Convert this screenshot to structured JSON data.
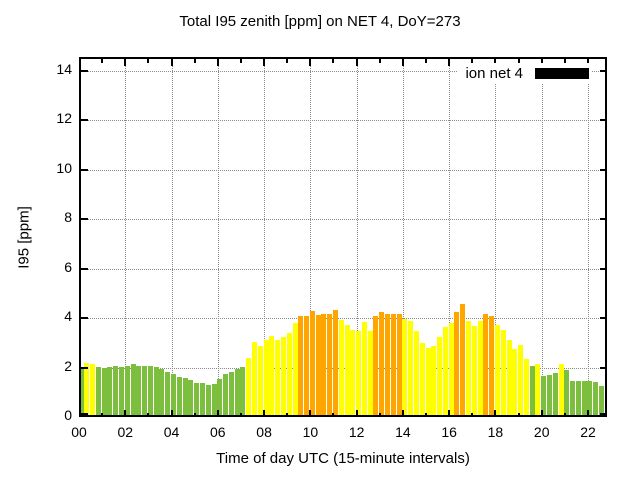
{
  "title": "Total I95 zenith [ppm] on NET 4, DoY=273",
  "legend": {
    "label": "ion net 4",
    "swatch_color": "#000000"
  },
  "colors": {
    "green": "#7cbf3f",
    "yellow": "#ffff00",
    "orange": "#ffa500",
    "grid": "#8a8a8a",
    "axis": "#000000"
  },
  "chart_data": {
    "type": "bar",
    "title": "Total I95 zenith [ppm] on NET 4, DoY=273",
    "xlabel": "Time of day UTC (15-minute intervals)",
    "ylabel": "I95 [ppm]",
    "ylim": [
      0,
      14
    ],
    "xlim_hours": [
      0,
      22.8
    ],
    "grid": true,
    "legend_position": "top-right",
    "y_tick_labels": [
      "0",
      "2",
      "4",
      "6",
      "8",
      "10",
      "12",
      "14"
    ],
    "x_tick_labels": [
      "00",
      "02",
      "04",
      "06",
      "08",
      "10",
      "12",
      "14",
      "16",
      "18",
      "20",
      "22"
    ],
    "bars": [
      {
        "t": "00:00",
        "v": 1.85,
        "c": "green"
      },
      {
        "t": "00:15",
        "v": 2.1,
        "c": "yellow"
      },
      {
        "t": "00:30",
        "v": 2.05,
        "c": "yellow"
      },
      {
        "t": "00:45",
        "v": 1.95,
        "c": "green"
      },
      {
        "t": "01:00",
        "v": 1.9,
        "c": "green"
      },
      {
        "t": "01:15",
        "v": 1.95,
        "c": "green"
      },
      {
        "t": "01:30",
        "v": 2.0,
        "c": "green"
      },
      {
        "t": "01:45",
        "v": 1.95,
        "c": "green"
      },
      {
        "t": "02:00",
        "v": 2.0,
        "c": "green"
      },
      {
        "t": "02:15",
        "v": 2.05,
        "c": "green"
      },
      {
        "t": "02:30",
        "v": 2.0,
        "c": "green"
      },
      {
        "t": "02:45",
        "v": 2.0,
        "c": "green"
      },
      {
        "t": "03:00",
        "v": 2.0,
        "c": "green"
      },
      {
        "t": "03:15",
        "v": 1.95,
        "c": "green"
      },
      {
        "t": "03:30",
        "v": 1.85,
        "c": "green"
      },
      {
        "t": "03:45",
        "v": 1.75,
        "c": "green"
      },
      {
        "t": "04:00",
        "v": 1.65,
        "c": "green"
      },
      {
        "t": "04:15",
        "v": 1.55,
        "c": "green"
      },
      {
        "t": "04:30",
        "v": 1.5,
        "c": "green"
      },
      {
        "t": "04:45",
        "v": 1.4,
        "c": "green"
      },
      {
        "t": "05:00",
        "v": 1.3,
        "c": "green"
      },
      {
        "t": "05:15",
        "v": 1.28,
        "c": "green"
      },
      {
        "t": "05:30",
        "v": 1.2,
        "c": "green"
      },
      {
        "t": "05:45",
        "v": 1.25,
        "c": "green"
      },
      {
        "t": "06:00",
        "v": 1.45,
        "c": "green"
      },
      {
        "t": "06:15",
        "v": 1.65,
        "c": "green"
      },
      {
        "t": "06:30",
        "v": 1.75,
        "c": "green"
      },
      {
        "t": "06:45",
        "v": 1.85,
        "c": "green"
      },
      {
        "t": "07:00",
        "v": 1.95,
        "c": "green"
      },
      {
        "t": "07:15",
        "v": 2.3,
        "c": "yellow"
      },
      {
        "t": "07:30",
        "v": 2.95,
        "c": "yellow"
      },
      {
        "t": "07:45",
        "v": 2.8,
        "c": "yellow"
      },
      {
        "t": "08:00",
        "v": 3.05,
        "c": "yellow"
      },
      {
        "t": "08:15",
        "v": 3.2,
        "c": "yellow"
      },
      {
        "t": "08:30",
        "v": 3.05,
        "c": "yellow"
      },
      {
        "t": "08:45",
        "v": 3.15,
        "c": "yellow"
      },
      {
        "t": "09:00",
        "v": 3.3,
        "c": "yellow"
      },
      {
        "t": "09:15",
        "v": 3.7,
        "c": "yellow"
      },
      {
        "t": "09:30",
        "v": 4.0,
        "c": "orange"
      },
      {
        "t": "09:45",
        "v": 4.0,
        "c": "orange"
      },
      {
        "t": "10:00",
        "v": 4.2,
        "c": "orange"
      },
      {
        "t": "10:15",
        "v": 4.05,
        "c": "orange"
      },
      {
        "t": "10:30",
        "v": 4.1,
        "c": "orange"
      },
      {
        "t": "10:45",
        "v": 4.1,
        "c": "orange"
      },
      {
        "t": "11:00",
        "v": 4.25,
        "c": "orange"
      },
      {
        "t": "11:15",
        "v": 3.85,
        "c": "yellow"
      },
      {
        "t": "11:30",
        "v": 3.65,
        "c": "yellow"
      },
      {
        "t": "11:45",
        "v": 3.45,
        "c": "yellow"
      },
      {
        "t": "12:00",
        "v": 3.4,
        "c": "yellow"
      },
      {
        "t": "12:15",
        "v": 3.75,
        "c": "yellow"
      },
      {
        "t": "12:30",
        "v": 3.4,
        "c": "yellow"
      },
      {
        "t": "12:45",
        "v": 4.0,
        "c": "orange"
      },
      {
        "t": "13:00",
        "v": 4.15,
        "c": "orange"
      },
      {
        "t": "13:15",
        "v": 4.1,
        "c": "orange"
      },
      {
        "t": "13:30",
        "v": 4.1,
        "c": "orange"
      },
      {
        "t": "13:45",
        "v": 4.1,
        "c": "orange"
      },
      {
        "t": "14:00",
        "v": 3.9,
        "c": "yellow"
      },
      {
        "t": "14:15",
        "v": 3.8,
        "c": "yellow"
      },
      {
        "t": "14:30",
        "v": 3.4,
        "c": "yellow"
      },
      {
        "t": "14:45",
        "v": 2.9,
        "c": "yellow"
      },
      {
        "t": "15:00",
        "v": 2.7,
        "c": "yellow"
      },
      {
        "t": "15:15",
        "v": 2.8,
        "c": "yellow"
      },
      {
        "t": "15:30",
        "v": 3.15,
        "c": "yellow"
      },
      {
        "t": "15:45",
        "v": 3.55,
        "c": "yellow"
      },
      {
        "t": "16:00",
        "v": 3.7,
        "c": "yellow"
      },
      {
        "t": "16:15",
        "v": 4.15,
        "c": "orange"
      },
      {
        "t": "16:30",
        "v": 4.5,
        "c": "orange"
      },
      {
        "t": "16:45",
        "v": 3.8,
        "c": "yellow"
      },
      {
        "t": "17:00",
        "v": 3.6,
        "c": "yellow"
      },
      {
        "t": "17:15",
        "v": 3.8,
        "c": "yellow"
      },
      {
        "t": "17:30",
        "v": 4.1,
        "c": "orange"
      },
      {
        "t": "17:45",
        "v": 4.0,
        "c": "orange"
      },
      {
        "t": "18:00",
        "v": 3.65,
        "c": "yellow"
      },
      {
        "t": "18:15",
        "v": 3.45,
        "c": "yellow"
      },
      {
        "t": "18:30",
        "v": 3.05,
        "c": "yellow"
      },
      {
        "t": "18:45",
        "v": 2.65,
        "c": "yellow"
      },
      {
        "t": "19:00",
        "v": 2.85,
        "c": "yellow"
      },
      {
        "t": "19:15",
        "v": 2.25,
        "c": "yellow"
      },
      {
        "t": "19:30",
        "v": 2.0,
        "c": "green"
      },
      {
        "t": "19:45",
        "v": 2.07,
        "c": "yellow"
      },
      {
        "t": "20:00",
        "v": 1.57,
        "c": "green"
      },
      {
        "t": "20:15",
        "v": 1.61,
        "c": "green"
      },
      {
        "t": "20:30",
        "v": 1.7,
        "c": "green"
      },
      {
        "t": "20:45",
        "v": 2.07,
        "c": "yellow"
      },
      {
        "t": "21:00",
        "v": 1.84,
        "c": "green"
      },
      {
        "t": "21:15",
        "v": 1.37,
        "c": "green"
      },
      {
        "t": "21:30",
        "v": 1.37,
        "c": "green"
      },
      {
        "t": "21:45",
        "v": 1.39,
        "c": "green"
      },
      {
        "t": "22:00",
        "v": 1.37,
        "c": "green"
      },
      {
        "t": "22:15",
        "v": 1.33,
        "c": "green"
      },
      {
        "t": "22:30",
        "v": 1.19,
        "c": "green"
      }
    ]
  }
}
